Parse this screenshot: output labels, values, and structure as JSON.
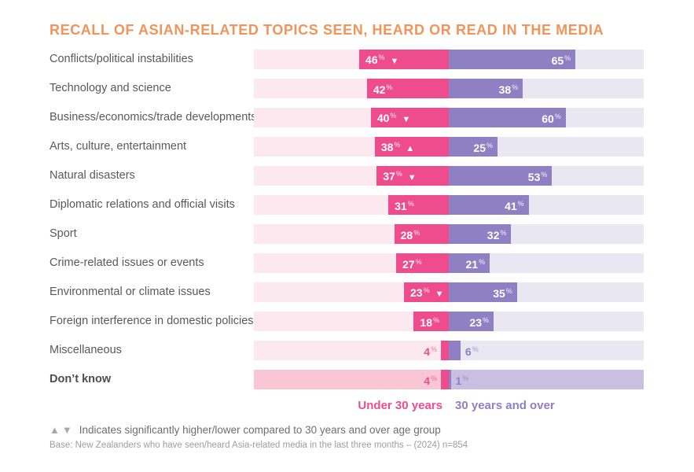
{
  "title": "RECALL OF ASIAN-RELATED TOPICS SEEN, HEARD OR READ IN THE MEDIA",
  "legend": {
    "series1": "Under 30 years",
    "series2": "30 years and over"
  },
  "footnotes": {
    "symbol_up": "▲",
    "symbol_down": "▼",
    "significance": "Indicates significantly higher/lower compared to 30 years and over age group",
    "base": "Base: New Zealanders who have seen/heard Asia-related media in the last three months – (2024) n=854"
  },
  "colors": {
    "title": "#F0945A",
    "under30_bar": "#EE4C8C",
    "over30_bar": "#8F80C3",
    "under30_track": "#FBE9EF",
    "over30_track": "#E9E7F2",
    "under30_track_emphasis": "#F9C6D6",
    "over30_track_emphasis": "#C8BFE1",
    "category_text": "#58595B",
    "value_text": "#FFFFFF"
  },
  "chart_data": {
    "type": "bar",
    "orientation": "diverging-horizontal",
    "axis_max_percent": 100,
    "unit": "%",
    "legend_position": "bottom-center",
    "series_names": [
      "Under 30 years",
      "30 years and over"
    ],
    "categories": [
      "Conflicts/political instabilities",
      "Technology and science",
      "Business/economics/trade developments",
      "Arts, culture, entertainment",
      "Natural disasters",
      "Diplomatic relations and official visits",
      "Sport",
      "Crime-related issues or events",
      "Environmental or climate issues",
      "Foreign interference in domestic policies",
      "Miscellaneous",
      "Don’t know"
    ],
    "rows": [
      {
        "category": "Conflicts/political instabilities",
        "under30": 46,
        "under30_marker": "▼",
        "over30": 65
      },
      {
        "category": "Technology and science",
        "under30": 42,
        "over30": 38
      },
      {
        "category": "Business/economics/trade developments",
        "under30": 40,
        "under30_marker": "▼",
        "over30": 60
      },
      {
        "category": "Arts, culture, entertainment",
        "under30": 38,
        "under30_marker": "▲",
        "over30": 25
      },
      {
        "category": "Natural disasters",
        "under30": 37,
        "under30_marker": "▼",
        "over30": 53
      },
      {
        "category": "Diplomatic relations and official visits",
        "under30": 31,
        "over30": 41
      },
      {
        "category": "Sport",
        "under30": 28,
        "over30": 32
      },
      {
        "category": "Crime-related issues or events",
        "under30": 27,
        "over30": 21
      },
      {
        "category": "Environmental or climate issues",
        "under30": 23,
        "under30_marker": "▼",
        "over30": 35
      },
      {
        "category": "Foreign interference in domestic policies",
        "under30": 18,
        "over30": 23
      },
      {
        "category": "Miscellaneous",
        "under30": 4,
        "over30": 6
      },
      {
        "category": "Don’t know",
        "under30": 4,
        "over30": 1,
        "emphasis": true,
        "bold_label": true
      }
    ]
  }
}
